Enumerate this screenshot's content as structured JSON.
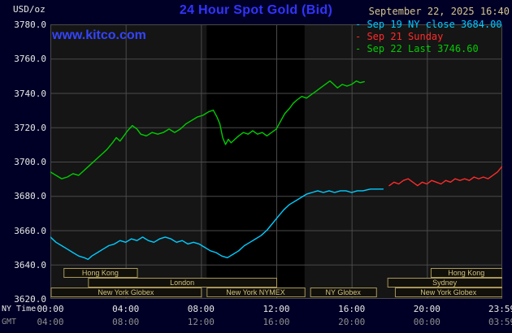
{
  "header": {
    "unit": "USD/oz",
    "title": "24 Hour Spot Gold (Bid)",
    "datetime": "September 22, 2025 16:40"
  },
  "watermark": "www.kitco.com",
  "legend": [
    {
      "marker": "-",
      "label": "Sep 19 NY close 3684.00",
      "color": "#00ccff"
    },
    {
      "marker": "-",
      "label": "Sep 21 Sunday",
      "color": "#ff2b2b"
    },
    {
      "marker": "-",
      "label": "Sep 22 Last 3746.60",
      "color": "#00cc00"
    }
  ],
  "colors": {
    "background": "#000026",
    "plot_background": "#151515",
    "band": "#000000",
    "grid": "#4a4a4a",
    "axis_text": "#e8e8e8",
    "gmt_text": "#8f8f8f",
    "title_blue": "#3333ff",
    "watermark_blue": "#3344ff",
    "date_tan": "#d6c690",
    "session_border": "#a8975a",
    "session_text": "#d2c27c",
    "session_fill": "#12100a"
  },
  "chart_data": {
    "type": "line",
    "title": "24 Hour Spot Gold (Bid)",
    "ylabel": "USD/oz",
    "ylim": [
      3620,
      3780
    ],
    "ystep": 20,
    "xlim_hours": [
      0,
      24
    ],
    "grid": true,
    "legend_position": "top-right",
    "yticks": [
      "3780.0",
      "3760.0",
      "3740.0",
      "3720.0",
      "3700.0",
      "3680.0",
      "3660.0",
      "3640.0",
      "3620.0"
    ],
    "xticks": {
      "positions_hours": [
        0,
        4,
        8,
        12,
        16,
        20,
        23.98
      ],
      "ny_labels": [
        "00:00",
        "04:00",
        "08:00",
        "12:00",
        "16:00",
        "20:00",
        "23:59"
      ],
      "gmt_labels": [
        "04:00",
        "08:00",
        "12:00",
        "16:00",
        "20:00",
        "00:00",
        "03:59"
      ]
    },
    "axis_row_names": {
      "ny": "NY Time",
      "gmt": "GMT"
    },
    "highlight_band": {
      "start": 8.3,
      "end": 13.5
    },
    "series": [
      {
        "id": "sep19",
        "name": "Sep 19 NY close 3684.00",
        "color": "#00ccff",
        "close_value": 3684.0,
        "points": [
          [
            0,
            3656
          ],
          [
            0.3,
            3653
          ],
          [
            0.6,
            3651
          ],
          [
            0.9,
            3649
          ],
          [
            1.2,
            3647
          ],
          [
            1.5,
            3645
          ],
          [
            1.8,
            3644
          ],
          [
            2.0,
            3643
          ],
          [
            2.2,
            3645
          ],
          [
            2.5,
            3647
          ],
          [
            2.8,
            3649
          ],
          [
            3.1,
            3651
          ],
          [
            3.4,
            3652
          ],
          [
            3.7,
            3654
          ],
          [
            4.0,
            3653
          ],
          [
            4.3,
            3655
          ],
          [
            4.6,
            3654
          ],
          [
            4.9,
            3656
          ],
          [
            5.2,
            3654
          ],
          [
            5.5,
            3653
          ],
          [
            5.8,
            3655
          ],
          [
            6.1,
            3656
          ],
          [
            6.4,
            3655
          ],
          [
            6.7,
            3653
          ],
          [
            7.0,
            3654
          ],
          [
            7.3,
            3652
          ],
          [
            7.6,
            3653
          ],
          [
            7.9,
            3652
          ],
          [
            8.2,
            3650
          ],
          [
            8.5,
            3648
          ],
          [
            8.8,
            3647
          ],
          [
            9.1,
            3645
          ],
          [
            9.4,
            3644
          ],
          [
            9.7,
            3646
          ],
          [
            10.0,
            3648
          ],
          [
            10.3,
            3651
          ],
          [
            10.6,
            3653
          ],
          [
            10.9,
            3655
          ],
          [
            11.2,
            3657
          ],
          [
            11.5,
            3660
          ],
          [
            11.8,
            3664
          ],
          [
            12.1,
            3668
          ],
          [
            12.4,
            3672
          ],
          [
            12.7,
            3675
          ],
          [
            13.0,
            3677
          ],
          [
            13.3,
            3679
          ],
          [
            13.6,
            3681
          ],
          [
            13.9,
            3682
          ],
          [
            14.2,
            3683
          ],
          [
            14.5,
            3682
          ],
          [
            14.8,
            3683
          ],
          [
            15.1,
            3682
          ],
          [
            15.4,
            3683
          ],
          [
            15.7,
            3683
          ],
          [
            16.0,
            3682
          ],
          [
            16.3,
            3683
          ],
          [
            16.6,
            3683
          ],
          [
            17.0,
            3684
          ],
          [
            17.4,
            3684
          ],
          [
            17.67,
            3684
          ]
        ]
      },
      {
        "id": "sep21",
        "name": "Sep 21 Sunday",
        "color": "#ff2b2b",
        "points": [
          [
            18.0,
            3686
          ],
          [
            18.25,
            3688
          ],
          [
            18.5,
            3687
          ],
          [
            18.75,
            3689
          ],
          [
            19.0,
            3690
          ],
          [
            19.25,
            3688
          ],
          [
            19.5,
            3686
          ],
          [
            19.75,
            3688
          ],
          [
            20.0,
            3687
          ],
          [
            20.25,
            3689
          ],
          [
            20.5,
            3688
          ],
          [
            20.75,
            3687
          ],
          [
            21.0,
            3689
          ],
          [
            21.25,
            3688
          ],
          [
            21.5,
            3690
          ],
          [
            21.75,
            3689
          ],
          [
            22.0,
            3690
          ],
          [
            22.25,
            3689
          ],
          [
            22.5,
            3691
          ],
          [
            22.75,
            3690
          ],
          [
            23.0,
            3691
          ],
          [
            23.25,
            3690
          ],
          [
            23.5,
            3692
          ],
          [
            23.75,
            3694
          ],
          [
            23.98,
            3697
          ]
        ]
      },
      {
        "id": "sep22",
        "name": "Sep 22 Last 3746.60",
        "color": "#00cc00",
        "last_value": 3746.6,
        "points": [
          [
            0,
            3694
          ],
          [
            0.3,
            3692
          ],
          [
            0.6,
            3690
          ],
          [
            0.9,
            3691
          ],
          [
            1.2,
            3693
          ],
          [
            1.5,
            3692
          ],
          [
            1.8,
            3695
          ],
          [
            2.1,
            3698
          ],
          [
            2.4,
            3701
          ],
          [
            2.7,
            3704
          ],
          [
            3.0,
            3707
          ],
          [
            3.3,
            3711
          ],
          [
            3.5,
            3714
          ],
          [
            3.7,
            3712
          ],
          [
            3.9,
            3715
          ],
          [
            4.1,
            3718
          ],
          [
            4.35,
            3721
          ],
          [
            4.6,
            3719
          ],
          [
            4.8,
            3716
          ],
          [
            5.1,
            3715
          ],
          [
            5.4,
            3717
          ],
          [
            5.7,
            3716
          ],
          [
            6.0,
            3717
          ],
          [
            6.3,
            3719
          ],
          [
            6.6,
            3717
          ],
          [
            6.9,
            3719
          ],
          [
            7.2,
            3722
          ],
          [
            7.5,
            3724
          ],
          [
            7.8,
            3726
          ],
          [
            8.1,
            3727
          ],
          [
            8.4,
            3729
          ],
          [
            8.65,
            3730
          ],
          [
            8.85,
            3726
          ],
          [
            9.0,
            3722
          ],
          [
            9.15,
            3714
          ],
          [
            9.3,
            3710
          ],
          [
            9.45,
            3713
          ],
          [
            9.6,
            3711
          ],
          [
            9.8,
            3713
          ],
          [
            10.0,
            3715
          ],
          [
            10.25,
            3717
          ],
          [
            10.5,
            3716
          ],
          [
            10.75,
            3718
          ],
          [
            11.0,
            3716
          ],
          [
            11.25,
            3717
          ],
          [
            11.5,
            3715
          ],
          [
            11.75,
            3717
          ],
          [
            12.0,
            3719
          ],
          [
            12.2,
            3723
          ],
          [
            12.45,
            3728
          ],
          [
            12.7,
            3731
          ],
          [
            12.9,
            3734
          ],
          [
            13.1,
            3736
          ],
          [
            13.35,
            3738
          ],
          [
            13.6,
            3737
          ],
          [
            13.85,
            3739
          ],
          [
            14.1,
            3741
          ],
          [
            14.35,
            3743
          ],
          [
            14.6,
            3745
          ],
          [
            14.85,
            3747
          ],
          [
            15.05,
            3745
          ],
          [
            15.25,
            3743
          ],
          [
            15.5,
            3745
          ],
          [
            15.75,
            3744
          ],
          [
            16.0,
            3745
          ],
          [
            16.25,
            3747
          ],
          [
            16.45,
            3746
          ],
          [
            16.67,
            3746.6
          ]
        ]
      }
    ],
    "sessions": [
      {
        "row": 0,
        "label": "Hong Kong",
        "start": 0.7,
        "end": 4.6
      },
      {
        "row": 0,
        "label": "Hong Kong",
        "start": 20.2,
        "end": 23.98
      },
      {
        "row": 1,
        "label": "London",
        "start": 2.0,
        "end": 12.0
      },
      {
        "row": 1,
        "label": "Sydney",
        "start": 17.9,
        "end": 23.98
      },
      {
        "row": 2,
        "label": "New York Globex",
        "start": 0.02,
        "end": 8.0
      },
      {
        "row": 2,
        "label": "New York NYMEX",
        "start": 8.3,
        "end": 13.5
      },
      {
        "row": 2,
        "label": "NY Globex",
        "start": 13.8,
        "end": 17.3
      },
      {
        "row": 2,
        "label": "New York Globex",
        "start": 18.3,
        "end": 23.98
      }
    ]
  }
}
